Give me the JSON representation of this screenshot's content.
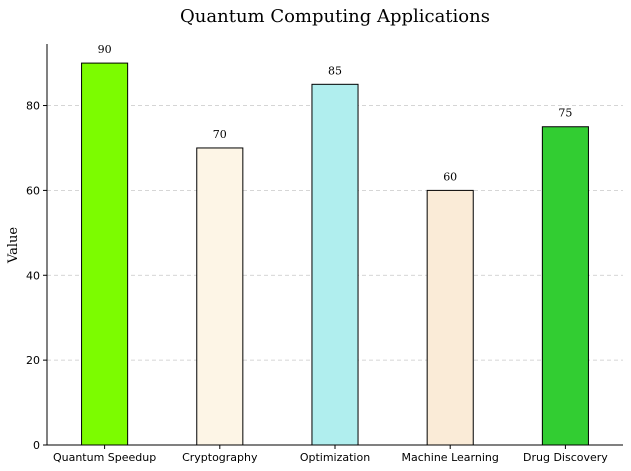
{
  "chart_data": {
    "type": "bar",
    "title": "Quantum Computing Applications",
    "xlabel": "",
    "ylabel": "Value",
    "categories": [
      "Quantum Speedup",
      "Cryptography",
      "Optimization",
      "Machine Learning",
      "Drug Discovery"
    ],
    "values": [
      90,
      70,
      85,
      60,
      75
    ],
    "colors": [
      "#7cfc00",
      "#fdf5e6",
      "#b0eeee",
      "#faebd7",
      "#32cd32"
    ],
    "ylim": [
      0,
      94.5
    ],
    "yticks": [
      0,
      20,
      40,
      60,
      80
    ],
    "grid": "y-dashed",
    "legend": "none",
    "show_value_labels": true
  }
}
